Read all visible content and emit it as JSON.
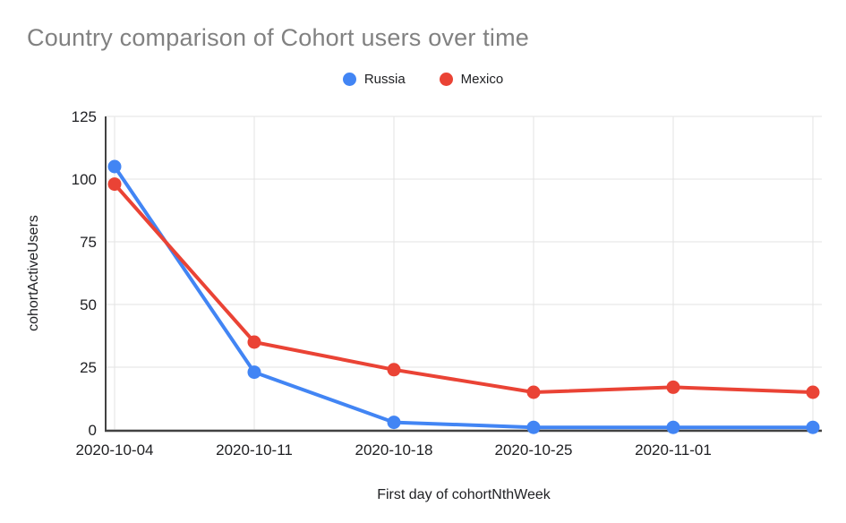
{
  "chart_data": {
    "type": "line",
    "title": "Country comparison of Cohort users over time",
    "xlabel": "First day of cohortNthWeek",
    "ylabel": "cohortActiveUsers",
    "categories": [
      "2020-10-04",
      "2020-10-11",
      "2020-10-18",
      "2020-10-25",
      "2020-11-01",
      ""
    ],
    "series": [
      {
        "name": "Russia",
        "color": "#4285F4",
        "values": [
          105,
          23,
          3,
          1,
          1,
          1
        ]
      },
      {
        "name": "Mexico",
        "color": "#EA4335",
        "values": [
          98,
          35,
          24,
          15,
          17,
          15
        ]
      }
    ],
    "yticks": [
      0,
      25,
      50,
      75,
      100,
      125
    ],
    "ylim": [
      0,
      125
    ],
    "grid": true,
    "legend_position": "top",
    "colors": {
      "title_text": "#818181",
      "axis_text": "#202124",
      "gridline": "#e3e3e3",
      "axis_line": "#424242"
    }
  }
}
